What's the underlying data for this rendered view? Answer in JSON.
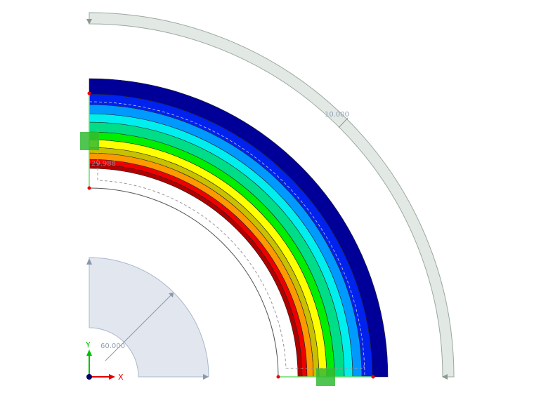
{
  "result_bands": {
    "colors": [
      "#b00000",
      "#ee0000",
      "#ff9900",
      "#c8c000",
      "#ffff00",
      "#00ee00",
      "#00dd88",
      "#00eeee",
      "#0099ff",
      "#0022ee",
      "#000099"
    ]
  },
  "dimensions": {
    "outer_dimension": "10.000",
    "radius_dimension": "60.000",
    "inner_value": "29.988"
  },
  "axes": {
    "x_label": "X",
    "y_label": "Y",
    "x_color": "#e00000",
    "y_color": "#00c000"
  },
  "colors": {
    "support": "#33bb33",
    "node": "#ee0000",
    "dimension_band": "#e2e8e4",
    "section": "#e2e6ee"
  }
}
